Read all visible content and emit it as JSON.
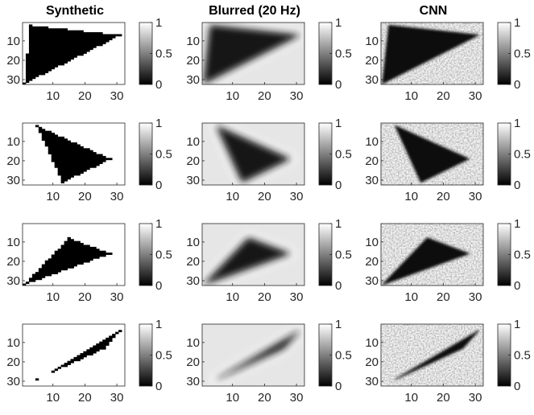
{
  "chart_data": {
    "type": "heatmap",
    "layout": "4 rows x 3 columns of image panels, each with its own grayscale colorbar",
    "colormap": "gray",
    "columns": [
      {
        "title": "Synthetic"
      },
      {
        "title": "Blurred (20 Hz)"
      },
      {
        "title": "CNN"
      }
    ],
    "x_ticks": [
      "10",
      "20",
      "30"
    ],
    "y_ticks": [
      "10",
      "20",
      "30"
    ],
    "x_tick_values": [
      10,
      20,
      30
    ],
    "y_tick_values": [
      10,
      20,
      30
    ],
    "grid_size": [
      32,
      32
    ],
    "colorbar_ticks": [
      "1",
      "0.5",
      "0"
    ],
    "clim": [
      0,
      1
    ],
    "rows": [
      {
        "shape": "triangle",
        "vertices": [
          [
            3,
            2
          ],
          [
            31,
            7
          ],
          [
            1,
            32
          ]
        ]
      },
      {
        "shape": "triangle",
        "vertices": [
          [
            5,
            2
          ],
          [
            28,
            19
          ],
          [
            13,
            31
          ]
        ]
      },
      {
        "shape": "triangle",
        "vertices": [
          [
            15,
            8
          ],
          [
            28,
            16
          ],
          [
            1,
            32
          ]
        ]
      },
      {
        "shape": "triangle",
        "vertices": [
          [
            31,
            4
          ],
          [
            26,
            13
          ],
          [
            5,
            29
          ]
        ]
      }
    ]
  }
}
